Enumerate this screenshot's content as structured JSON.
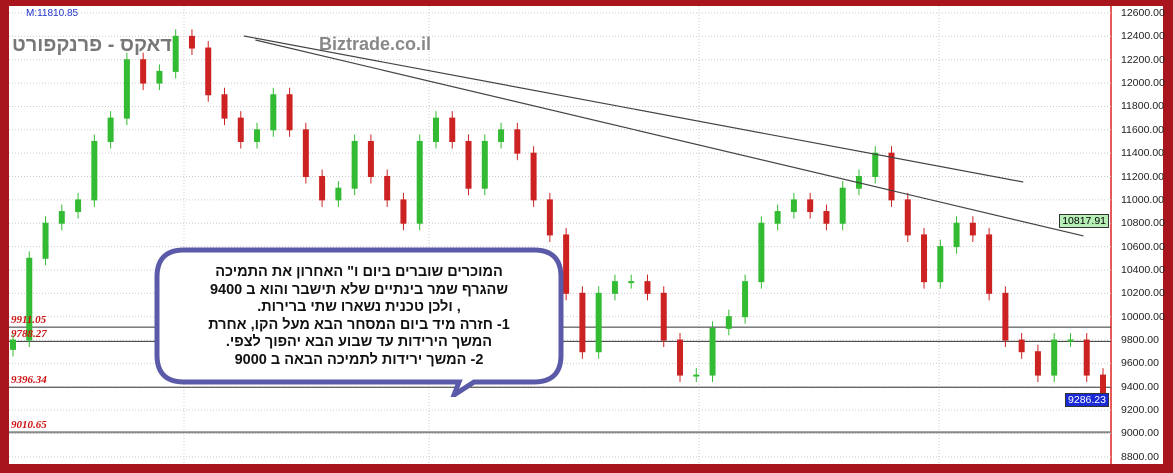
{
  "header": {
    "max_label": "M:11810.85",
    "title": "דאקס - פרנקפורט",
    "brand": "Biztrade.co.il"
  },
  "colors": {
    "frame": "#a8151d",
    "up": "#33bb33",
    "down": "#cc2222",
    "last_price_bg": "#1a2bd6",
    "ref_price_bg": "#b6f0b6"
  },
  "chart_data": {
    "type": "candlestick",
    "ylim": [
      8800,
      12600
    ],
    "y_ticks": [
      "12600.00",
      "12400.00",
      "12200.00",
      "12000.00",
      "11800.00",
      "11600.00",
      "11400.00",
      "11200.00",
      "11000.00",
      "10800.00",
      "10600.00",
      "10400.00",
      "10200.00",
      "10000.00",
      "9800.00",
      "9600.00",
      "9400.00",
      "9200.00",
      "9000.00",
      "8800.00"
    ],
    "closes": [
      9800,
      10500,
      10800,
      10900,
      11000,
      11500,
      11700,
      12200,
      12000,
      12100,
      12400,
      12300,
      11900,
      11700,
      11500,
      11600,
      11900,
      11600,
      11200,
      11000,
      11100,
      11500,
      11200,
      11000,
      10800,
      11500,
      11700,
      11500,
      11100,
      11500,
      11600,
      11400,
      11000,
      10700,
      10200,
      9700,
      10200,
      10300,
      10300,
      10200,
      9800,
      9500,
      9500,
      9900,
      10000,
      10300,
      10800,
      10900,
      11000,
      10900,
      10800,
      11100,
      11200,
      11400,
      11000,
      10700,
      10300,
      10600,
      10800,
      10700,
      10200,
      9800,
      9700,
      9500,
      9800,
      9800,
      9500,
      9286
    ],
    "horizontal_levels": [
      {
        "label": "9911.05",
        "value": 9911.05
      },
      {
        "label": "9788.27",
        "value": 9788.27
      },
      {
        "label": "9396.34",
        "value": 9396.34
      },
      {
        "label": "9010.65",
        "value": 9010.65
      }
    ],
    "trendlines": [
      {
        "from": [
          14.2,
          12403
        ],
        "to": [
          62.1,
          11153
        ]
      },
      {
        "from": [
          14.9,
          12369
        ],
        "to": [
          65.8,
          10691
        ]
      }
    ],
    "last_price": "9286.23",
    "ref_price": "10817.91"
  },
  "annotation": {
    "lines": [
      "המוכרים שוברים ביום ו\" האחרון את התמיכה",
      "שהגרף שמר בינתיים שלא תישבר והוא ב 9400",
      ", ולכן טכנית נשארו שתי ברירות.",
      "1- חזרה מיד ביום המסחר הבא מעל הקו, אחרת",
      "המשך הירידות עד שבוע הבא יהפוך לצפי.",
      "2- המשך ירידות לתמיכה הבאה ב 9000"
    ]
  }
}
